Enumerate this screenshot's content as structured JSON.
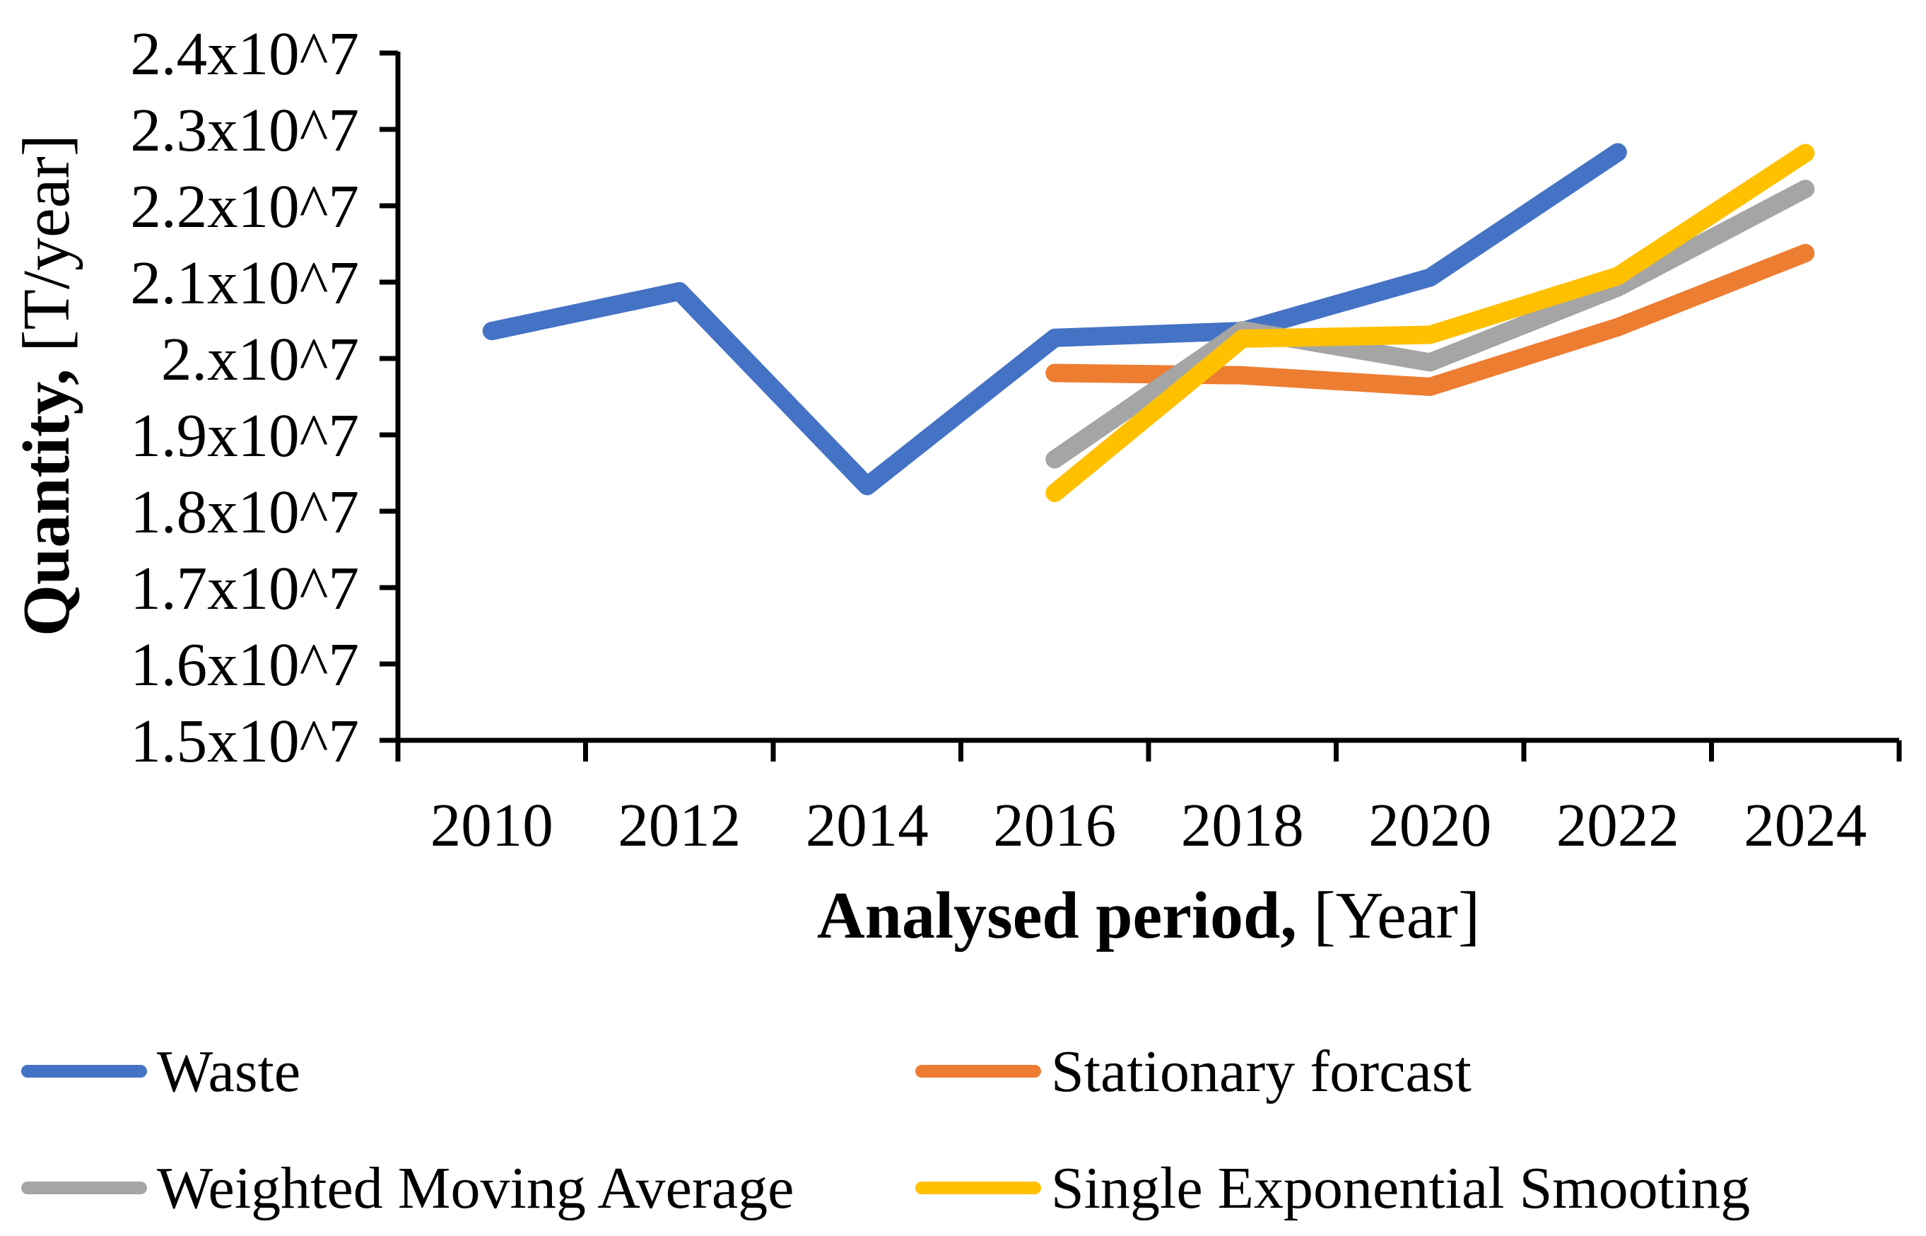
{
  "figure": {
    "background": "#ffffff",
    "axis_color": "#000000",
    "text_color": "#000000"
  },
  "chart_data": {
    "type": "line",
    "title": "",
    "legend_position": "bottom",
    "grid": "off",
    "x_axis": {
      "title_bold": "Analysed period,",
      "title_regular": " [Year]",
      "categories": [
        "2010",
        "2012",
        "2014",
        "2016",
        "2018",
        "2020",
        "2022",
        "2024"
      ]
    },
    "y_axis": {
      "title_bold": "Quantity,",
      "title_regular": " [T/year]",
      "min": 15000000,
      "max": 24000000,
      "tick_step": 1000000,
      "tick_labels_top_to_bottom": [
        "2.4x10^7",
        "2.3x10^7",
        "2.2x10^7",
        "2.1x10^7",
        "2.x10^7",
        "1.9x10^7",
        "1.8x10^7",
        "1.7x10^7",
        "1.6x10^7",
        "1.5x10^7"
      ]
    },
    "series": [
      {
        "name": "Waste",
        "color": "#4472C4",
        "years": [
          2010,
          2012,
          2014,
          2016,
          2018,
          2020,
          2022
        ],
        "values": [
          20360000,
          20880000,
          18330000,
          20270000,
          20360000,
          21060000,
          22700000
        ]
      },
      {
        "name": "Stationary forcast",
        "color": "#ED7D31",
        "years": [
          2016,
          2018,
          2020,
          2022,
          2024
        ],
        "values": [
          19810000,
          19780000,
          19630000,
          20410000,
          21380000
        ]
      },
      {
        "name": "Weighted Moving Average",
        "color": "#A5A5A5",
        "years": [
          2016,
          2018,
          2020,
          2022,
          2024
        ],
        "values": [
          18680000,
          20370000,
          19950000,
          20930000,
          22220000
        ]
      },
      {
        "name": "Single Exponential Smooting",
        "color": "#FFC000",
        "years": [
          2016,
          2018,
          2020,
          2022,
          2024
        ],
        "values": [
          18240000,
          20260000,
          20310000,
          21080000,
          22690000
        ]
      }
    ]
  }
}
